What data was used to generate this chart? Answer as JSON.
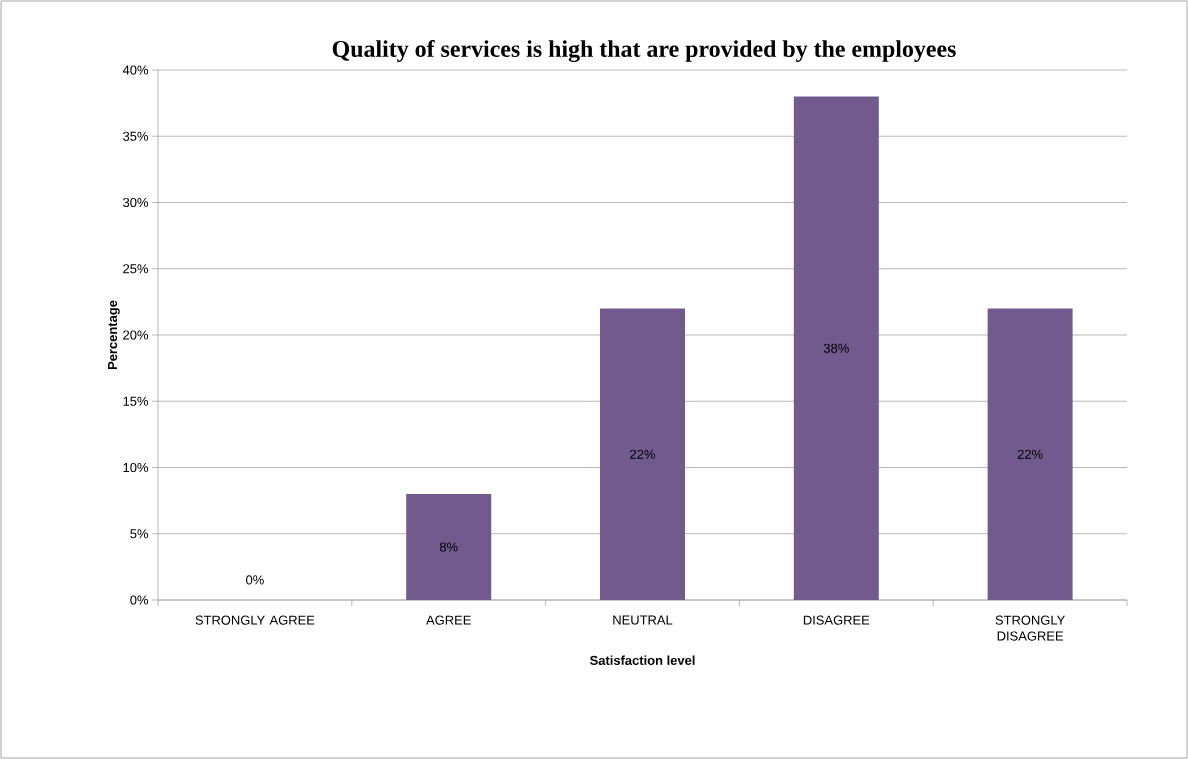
{
  "chart_data": {
    "type": "bar",
    "title": "Quality of services is high that are provided by the employees",
    "xlabel": "Satisfaction level",
    "ylabel": "Percentage",
    "categories": [
      "STRONGLY AGREE",
      "AGREE",
      "NEUTRAL",
      "DISAGREE",
      "STRONGLY DISAGREE"
    ],
    "values": [
      0,
      8,
      22,
      38,
      22
    ],
    "value_labels": [
      "0%",
      "8%",
      "22%",
      "38%",
      "22%"
    ],
    "color": "#725a8f",
    "ylim": [
      0,
      40
    ],
    "yticks": [
      {
        "value": 0,
        "label": "0%"
      },
      {
        "value": 5,
        "label": "5%"
      },
      {
        "value": 10,
        "label": "10%"
      },
      {
        "value": 15,
        "label": "15%"
      },
      {
        "value": 20,
        "label": "20%"
      },
      {
        "value": 25,
        "label": "25%"
      },
      {
        "value": 30,
        "label": "30%"
      },
      {
        "value": 35,
        "label": "35%"
      },
      {
        "value": 40,
        "label": "40%"
      }
    ],
    "grid": "y"
  }
}
